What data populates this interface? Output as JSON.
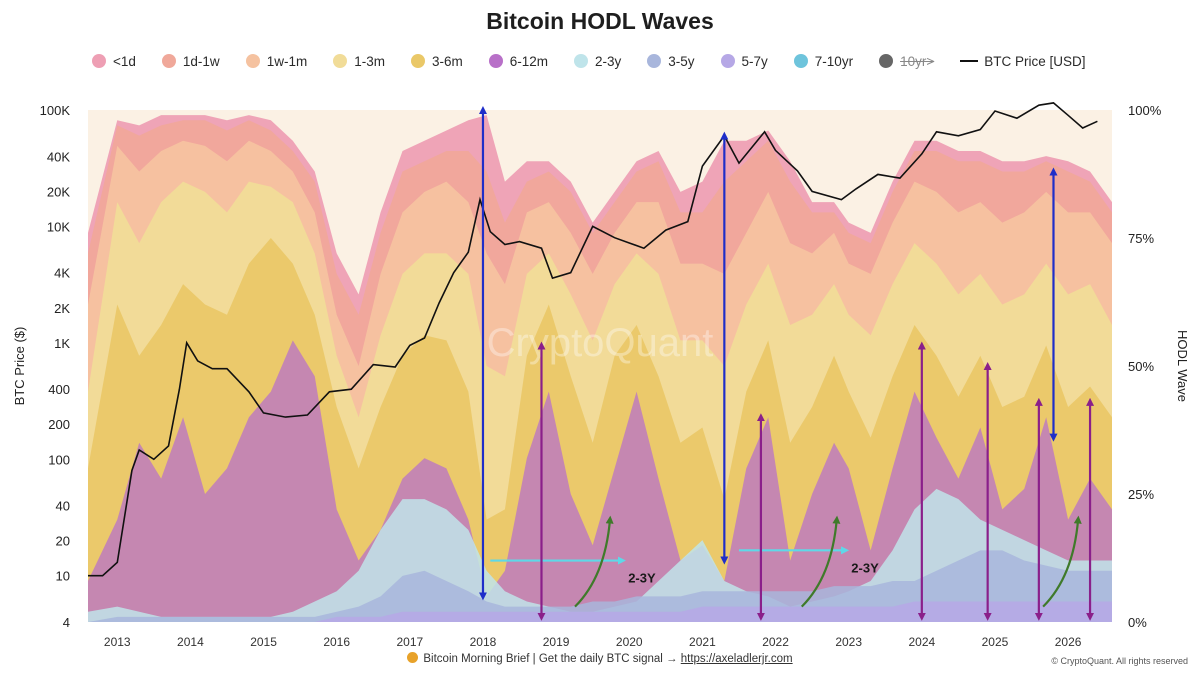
{
  "title": "Bitcoin HODL Waves",
  "legend": [
    {
      "label": "<1d",
      "color": "#ee9fb4"
    },
    {
      "label": "1d-1w",
      "color": "#f0a89a"
    },
    {
      "label": "1w-1m",
      "color": "#f5c2a0"
    },
    {
      "label": "1-3m",
      "color": "#f1dc98"
    },
    {
      "label": "3-6m",
      "color": "#eac868"
    },
    {
      "label": "6-12m",
      "color": "#b870c8"
    },
    {
      "label": "2-3y",
      "color": "#bfe4ea"
    },
    {
      "label": "3-5y",
      "color": "#a8b6dc"
    },
    {
      "label": "5-7y",
      "color": "#b6a8e6"
    },
    {
      "label": "7-10yr",
      "color": "#6ec4dc"
    },
    {
      "label": "10yr>",
      "color": "#666666"
    },
    {
      "label": "BTC Price [USD]",
      "color": "#111111"
    }
  ],
  "footer": {
    "text": "Bitcoin Morning Brief | Get the daily BTC signal → ",
    "link": "https://axeladlerjr.com",
    "copyright": "© CryptoQuant. All rights reserved"
  },
  "watermark": "CryptoQuant",
  "chart_data": {
    "type": "area",
    "title": "Bitcoin HODL Waves",
    "ylabel_left": "BTC Price ($)",
    "ylabel_right": "HODL Wave",
    "y_left_scale": "log",
    "y_left_ticks": [
      "100K",
      "40K",
      "20K",
      "10K",
      "4K",
      "2K",
      "1K",
      "400",
      "200",
      "100",
      "40",
      "20",
      "10",
      "4"
    ],
    "y_left_tick_values": [
      100000,
      40000,
      20000,
      10000,
      4000,
      2000,
      1000,
      400,
      200,
      100,
      40,
      20,
      10,
      4
    ],
    "y_right_ticks": [
      "100%",
      "75%",
      "50%",
      "25%",
      "0%"
    ],
    "y_right_tick_values": [
      100,
      75,
      50,
      25,
      0
    ],
    "x_ticks": [
      "2013",
      "2014",
      "2015",
      "2016",
      "2017",
      "2018",
      "2019",
      "2020",
      "2021",
      "2022",
      "2023",
      "2024",
      "2025",
      "2026"
    ],
    "xlim": [
      2012.6,
      2026.6
    ],
    "x": [
      2012.6,
      2013.0,
      2013.3,
      2013.6,
      2013.9,
      2014.2,
      2014.5,
      2014.8,
      2015.1,
      2015.4,
      2015.7,
      2016.0,
      2016.3,
      2016.6,
      2016.9,
      2017.2,
      2017.5,
      2017.8,
      2018.05,
      2018.3,
      2018.6,
      2018.9,
      2019.2,
      2019.5,
      2019.8,
      2020.1,
      2020.4,
      2020.7,
      2021.0,
      2021.3,
      2021.6,
      2021.9,
      2022.2,
      2022.5,
      2022.8,
      2023.0,
      2023.3,
      2023.6,
      2023.9,
      2024.2,
      2024.5,
      2024.8,
      2025.1,
      2025.4,
      2025.7,
      2026.0,
      2026.3,
      2026.6
    ],
    "series_cumulative_top_pct": [
      {
        "name": "6-12m",
        "values": [
          8,
          20,
          35,
          28,
          40,
          25,
          30,
          40,
          45,
          55,
          48,
          22,
          12,
          18,
          28,
          32,
          30,
          20,
          5,
          10,
          32,
          45,
          25,
          15,
          30,
          45,
          28,
          12,
          15,
          8,
          30,
          40,
          12,
          25,
          35,
          30,
          14,
          30,
          45,
          36,
          28,
          38,
          22,
          26,
          40,
          20,
          28,
          22
        ]
      },
      {
        "name": "3-6m",
        "values": [
          30,
          62,
          52,
          58,
          66,
          62,
          60,
          70,
          75,
          70,
          60,
          42,
          30,
          42,
          52,
          56,
          55,
          45,
          20,
          22,
          52,
          62,
          48,
          35,
          52,
          58,
          48,
          35,
          38,
          24,
          45,
          55,
          35,
          42,
          52,
          45,
          36,
          48,
          58,
          52,
          44,
          52,
          42,
          44,
          54,
          42,
          46,
          40
        ]
      },
      {
        "name": "1-3m",
        "values": [
          45,
          82,
          74,
          82,
          86,
          84,
          80,
          86,
          85,
          82,
          72,
          52,
          40,
          56,
          68,
          72,
          72,
          68,
          50,
          48,
          68,
          72,
          64,
          55,
          66,
          72,
          68,
          55,
          55,
          50,
          62,
          70,
          58,
          60,
          66,
          60,
          56,
          66,
          74,
          70,
          64,
          68,
          62,
          64,
          70,
          64,
          66,
          58
        ]
      },
      {
        "name": "1w-1m",
        "values": [
          62,
          93,
          88,
          92,
          94,
          93,
          90,
          94,
          92,
          88,
          80,
          60,
          50,
          68,
          80,
          84,
          86,
          82,
          72,
          66,
          80,
          82,
          76,
          68,
          76,
          82,
          82,
          70,
          70,
          68,
          76,
          84,
          74,
          72,
          76,
          70,
          68,
          78,
          86,
          84,
          80,
          82,
          78,
          80,
          84,
          80,
          80,
          74
        ]
      },
      {
        "name": "1d-1w",
        "values": [
          72,
          97,
          95,
          97,
          98,
          98,
          96,
          98,
          96,
          92,
          86,
          68,
          60,
          76,
          88,
          90,
          92,
          92,
          88,
          78,
          86,
          88,
          84,
          76,
          82,
          88,
          90,
          80,
          80,
          86,
          90,
          94,
          86,
          80,
          80,
          76,
          74,
          84,
          92,
          92,
          90,
          90,
          88,
          88,
          90,
          88,
          86,
          80
        ]
      },
      {
        "name": "<1d",
        "values": [
          76,
          98,
          97,
          99,
          99,
          99,
          98,
          99,
          98,
          94,
          88,
          72,
          64,
          80,
          92,
          94,
          96,
          98,
          99,
          86,
          90,
          90,
          86,
          78,
          84,
          90,
          92,
          84,
          86,
          94,
          94,
          96,
          90,
          82,
          82,
          78,
          76,
          86,
          94,
          94,
          92,
          92,
          90,
          90,
          91,
          90,
          88,
          82
        ]
      }
    ],
    "series_base_pct": [
      {
        "name": "2-3y",
        "values": [
          2,
          3,
          2,
          1,
          1,
          1,
          1,
          1,
          1,
          2,
          4,
          6,
          10,
          18,
          24,
          24,
          22,
          18,
          10,
          6,
          4,
          3,
          2,
          2,
          3,
          4,
          8,
          12,
          16,
          8,
          6,
          5,
          3,
          4,
          5,
          6,
          8,
          14,
          22,
          26,
          24,
          20,
          18,
          16,
          14,
          12,
          12,
          12
        ]
      },
      {
        "name": "3-5y",
        "values": [
          0,
          1,
          1,
          1,
          1,
          1,
          1,
          1,
          1,
          1,
          1,
          2,
          3,
          5,
          9,
          10,
          8,
          6,
          4,
          3,
          3,
          3,
          3,
          4,
          4,
          5,
          5,
          5,
          6,
          6,
          6,
          6,
          6,
          6,
          7,
          7,
          7,
          8,
          8,
          10,
          12,
          14,
          14,
          12,
          11,
          10,
          10,
          10
        ]
      },
      {
        "name": "5-7y",
        "values": [
          0,
          0,
          0,
          0,
          0,
          0,
          0,
          0,
          0,
          0,
          0,
          1,
          1,
          1,
          2,
          2,
          2,
          2,
          2,
          2,
          2,
          2,
          2,
          2,
          2,
          2,
          2,
          2,
          3,
          3,
          3,
          3,
          3,
          3,
          3,
          3,
          3,
          3,
          4,
          4,
          4,
          4,
          4,
          4,
          4,
          4,
          4,
          4
        ]
      }
    ],
    "btc_price": {
      "x": [
        2012.6,
        2012.8,
        2013.0,
        2013.2,
        2013.3,
        2013.5,
        2013.7,
        2013.85,
        2013.95,
        2014.1,
        2014.3,
        2014.5,
        2014.8,
        2015.0,
        2015.3,
        2015.6,
        2015.9,
        2016.2,
        2016.5,
        2016.8,
        2017.0,
        2017.2,
        2017.4,
        2017.6,
        2017.8,
        2017.96,
        2018.1,
        2018.3,
        2018.5,
        2018.8,
        2018.95,
        2019.2,
        2019.5,
        2019.8,
        2020.0,
        2020.2,
        2020.5,
        2020.8,
        2021.0,
        2021.3,
        2021.5,
        2021.85,
        2022.0,
        2022.3,
        2022.5,
        2022.9,
        2023.1,
        2023.4,
        2023.7,
        2024.0,
        2024.2,
        2024.5,
        2024.8,
        2025.0,
        2025.3,
        2025.6,
        2025.8,
        2026.0,
        2026.2,
        2026.4
      ],
      "y": [
        10,
        10,
        13,
        80,
        120,
        100,
        130,
        400,
        1000,
        700,
        600,
        600,
        380,
        250,
        230,
        240,
        380,
        400,
        650,
        620,
        950,
        1100,
        2200,
        4000,
        6000,
        17000,
        9000,
        7000,
        7400,
        6500,
        3600,
        4000,
        10000,
        8000,
        7200,
        6500,
        9300,
        11000,
        33000,
        60000,
        35000,
        65000,
        45000,
        30000,
        20000,
        17000,
        21000,
        28000,
        26000,
        42000,
        65000,
        60000,
        68000,
        98000,
        85000,
        110000,
        115000,
        90000,
        70000,
        80000
      ]
    },
    "annotations": [
      {
        "type": "arrow",
        "label": "",
        "direction": "vertical",
        "color": "#1f2ec9",
        "x": 2018.0,
        "from_pct": 100,
        "to_pct": 5
      },
      {
        "type": "arrow",
        "label": "",
        "direction": "vertical",
        "color": "#1f2ec9",
        "x": 2021.3,
        "from_pct": 95,
        "to_pct": 12
      },
      {
        "type": "arrow",
        "label": "",
        "direction": "vertical",
        "color": "#1f2ec9",
        "x": 2025.8,
        "from_pct": 88,
        "to_pct": 36
      },
      {
        "type": "arrow",
        "label": "2-3Y",
        "direction": "horizontal",
        "color": "#5ed8e8",
        "y_pct": 12,
        "from_x": 2018.1,
        "to_x": 2019.9
      },
      {
        "type": "arrow",
        "label": "2-3Y",
        "direction": "horizontal",
        "color": "#5ed8e8",
        "y_pct": 14,
        "from_x": 2021.5,
        "to_x": 2022.95
      }
    ],
    "purple_double_arrows_x": [
      2018.8,
      2021.8,
      2024.0,
      2024.9,
      2025.6,
      2026.3
    ],
    "green_curve_arrows_x": [
      2019.6,
      2022.7,
      2026.0
    ]
  }
}
